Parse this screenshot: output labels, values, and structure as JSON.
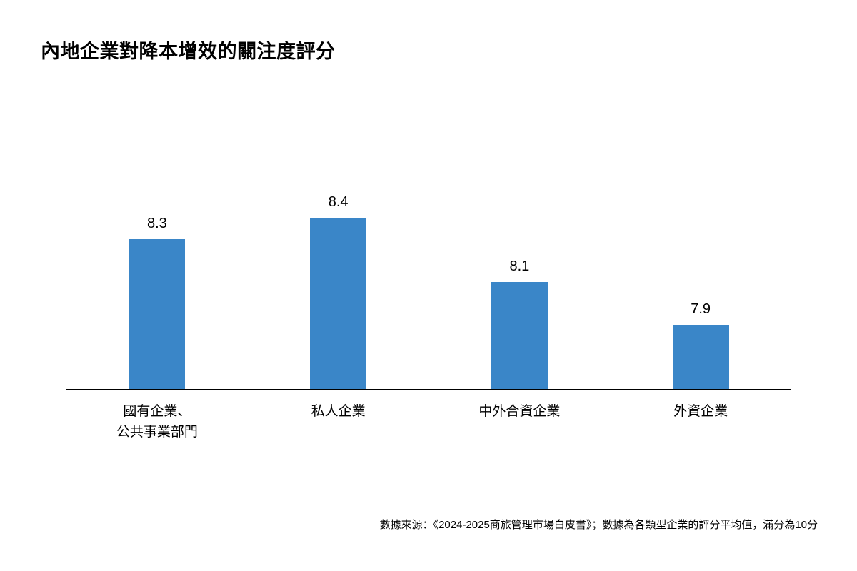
{
  "title": "內地企業對降本增效的關注度評分",
  "footer": "數據來源：《2024-2025商旅管理市場白皮書》；數據為各類型企業的評分平均值，滿分為10分",
  "chart_data": {
    "type": "bar",
    "title": "內地企業對降本增效的關注度評分",
    "categories": [
      "國有企業、\n公共事業部門",
      "私人企業",
      "中外合資企業",
      "外資企業"
    ],
    "values": [
      8.3,
      8.4,
      8.1,
      7.9
    ],
    "value_labels": [
      "8.3",
      "8.4",
      "8.1",
      "7.9"
    ],
    "xlabel": "",
    "ylabel": "",
    "ylim": [
      7.6,
      8.6
    ],
    "bar_color": "#3A86C8",
    "axis_color": "#000000",
    "grid": false,
    "legend_position": "none",
    "value_labels_shown": true
  }
}
